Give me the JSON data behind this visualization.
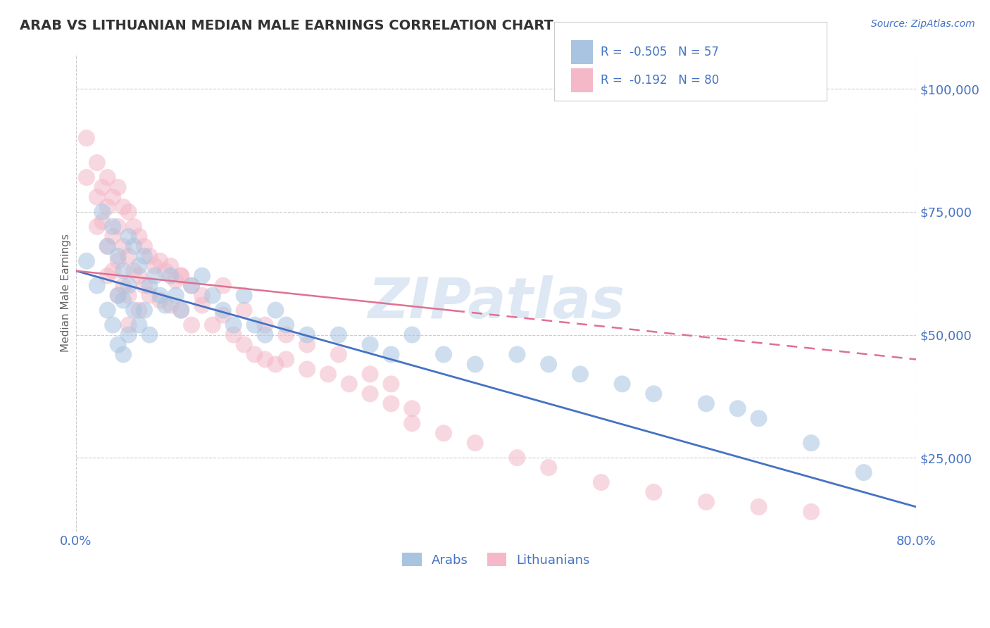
{
  "title": "ARAB VS LITHUANIAN MEDIAN MALE EARNINGS CORRELATION CHART",
  "source_text": "Source: ZipAtlas.com",
  "ylabel": "Median Male Earnings",
  "xmin": 0.0,
  "xmax": 0.8,
  "ymin": 10000,
  "ymax": 107000,
  "yticks": [
    25000,
    50000,
    75000,
    100000
  ],
  "ytick_labels": [
    "$25,000",
    "$50,000",
    "$75,000",
    "$100,000"
  ],
  "arab_color": "#a8c4e0",
  "arab_line_color": "#4472c4",
  "lithuanian_color": "#f4b8c8",
  "lithuanian_line_color": "#e07090",
  "legend_r_arab": "-0.505",
  "legend_n_arab": "57",
  "legend_r_lith": "-0.192",
  "legend_n_lith": "80",
  "legend_label_arab": "Arabs",
  "legend_label_lith": "Lithuanians",
  "text_color": "#4472c4",
  "axis_label_color": "#666666",
  "background_color": "#ffffff",
  "grid_color": "#cccccc",
  "watermark": "ZIPatlas",
  "watermark_color": "#d0dff0",
  "arab_x": [
    0.01,
    0.02,
    0.025,
    0.03,
    0.03,
    0.035,
    0.035,
    0.04,
    0.04,
    0.04,
    0.045,
    0.045,
    0.045,
    0.05,
    0.05,
    0.05,
    0.055,
    0.055,
    0.06,
    0.06,
    0.065,
    0.065,
    0.07,
    0.07,
    0.075,
    0.08,
    0.085,
    0.09,
    0.095,
    0.1,
    0.11,
    0.12,
    0.13,
    0.14,
    0.15,
    0.16,
    0.17,
    0.18,
    0.19,
    0.2,
    0.22,
    0.25,
    0.28,
    0.3,
    0.32,
    0.35,
    0.38,
    0.42,
    0.45,
    0.48,
    0.52,
    0.55,
    0.6,
    0.63,
    0.65,
    0.7,
    0.75
  ],
  "arab_y": [
    65000,
    60000,
    75000,
    68000,
    55000,
    72000,
    52000,
    66000,
    58000,
    48000,
    63000,
    57000,
    46000,
    70000,
    60000,
    50000,
    68000,
    55000,
    64000,
    52000,
    66000,
    55000,
    60000,
    50000,
    62000,
    58000,
    56000,
    62000,
    58000,
    55000,
    60000,
    62000,
    58000,
    55000,
    52000,
    58000,
    52000,
    50000,
    55000,
    52000,
    50000,
    50000,
    48000,
    46000,
    50000,
    46000,
    44000,
    46000,
    44000,
    42000,
    40000,
    38000,
    36000,
    35000,
    33000,
    28000,
    22000
  ],
  "lith_x": [
    0.01,
    0.01,
    0.02,
    0.02,
    0.02,
    0.025,
    0.025,
    0.03,
    0.03,
    0.03,
    0.03,
    0.035,
    0.035,
    0.035,
    0.04,
    0.04,
    0.04,
    0.04,
    0.045,
    0.045,
    0.045,
    0.05,
    0.05,
    0.05,
    0.05,
    0.055,
    0.055,
    0.06,
    0.06,
    0.06,
    0.065,
    0.065,
    0.07,
    0.07,
    0.075,
    0.08,
    0.08,
    0.085,
    0.09,
    0.09,
    0.095,
    0.1,
    0.1,
    0.11,
    0.11,
    0.12,
    0.13,
    0.14,
    0.15,
    0.16,
    0.17,
    0.18,
    0.19,
    0.2,
    0.22,
    0.24,
    0.26,
    0.28,
    0.3,
    0.32,
    0.14,
    0.16,
    0.18,
    0.2,
    0.22,
    0.25,
    0.28,
    0.3,
    0.32,
    0.35,
    0.38,
    0.42,
    0.45,
    0.5,
    0.55,
    0.6,
    0.65,
    0.7,
    0.12,
    0.1
  ],
  "lith_y": [
    82000,
    90000,
    85000,
    78000,
    72000,
    80000,
    73000,
    82000,
    76000,
    68000,
    62000,
    78000,
    70000,
    63000,
    80000,
    72000,
    65000,
    58000,
    76000,
    68000,
    60000,
    75000,
    66000,
    58000,
    52000,
    72000,
    63000,
    70000,
    62000,
    55000,
    68000,
    60000,
    66000,
    58000,
    64000,
    65000,
    57000,
    63000,
    64000,
    56000,
    61000,
    62000,
    55000,
    60000,
    52000,
    56000,
    52000,
    54000,
    50000,
    48000,
    46000,
    45000,
    44000,
    45000,
    43000,
    42000,
    40000,
    38000,
    36000,
    32000,
    60000,
    55000,
    52000,
    50000,
    48000,
    46000,
    42000,
    40000,
    35000,
    30000,
    28000,
    25000,
    23000,
    20000,
    18000,
    16000,
    15000,
    14000,
    58000,
    62000
  ]
}
